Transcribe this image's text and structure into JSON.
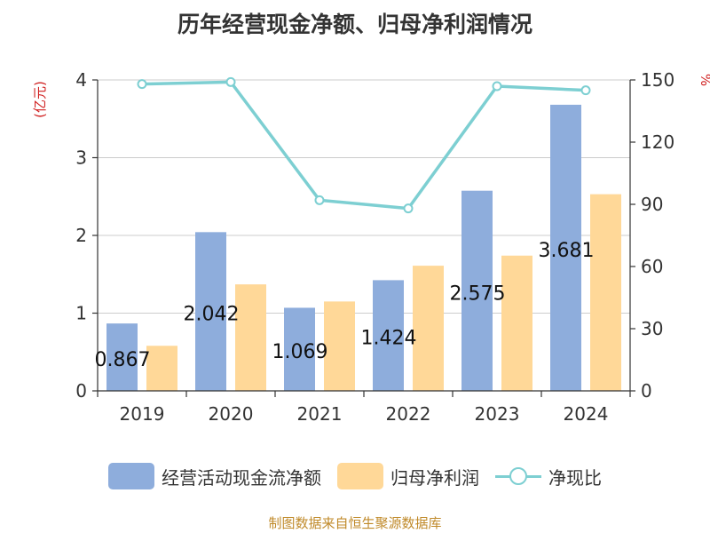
{
  "title": "历年经营现金净额、归母净利润情况",
  "source": "制图数据来自恒生聚源数据库",
  "colors": {
    "bar_ocf": "#8EADDC",
    "bar_np": "#FFD898",
    "line": "#7DCFD2",
    "unit_red": "#D02020",
    "source": "#C08A2A",
    "axis": "#333333",
    "grid": "#CCCCCC"
  },
  "chart_data": {
    "type": "bar",
    "categories": [
      "2019",
      "2020",
      "2021",
      "2022",
      "2023",
      "2024"
    ],
    "left_axis": {
      "unit": "(亿元)",
      "ylim": [
        0,
        4
      ],
      "ticks": [
        "0",
        "1",
        "2",
        "3",
        "4"
      ]
    },
    "right_axis": {
      "unit": "%",
      "ylim": [
        0,
        150
      ],
      "ticks": [
        "0",
        "30",
        "60",
        "90",
        "120",
        "150"
      ]
    },
    "grid": true,
    "legend_position": "bottom",
    "series": [
      {
        "name": "经营活动现金流净额",
        "type": "bar",
        "axis": "left",
        "values": [
          0.867,
          2.042,
          1.069,
          1.424,
          2.575,
          3.681
        ],
        "labels": [
          "0.867",
          "2.042",
          "1.069",
          "1.424",
          "2.575",
          "3.681"
        ]
      },
      {
        "name": "归母净利润",
        "type": "bar",
        "axis": "left",
        "values": [
          0.58,
          1.37,
          1.15,
          1.61,
          1.74,
          2.53
        ]
      },
      {
        "name": "净现比",
        "type": "line",
        "axis": "right",
        "values": [
          148,
          149,
          92,
          88,
          147,
          145
        ]
      }
    ]
  }
}
